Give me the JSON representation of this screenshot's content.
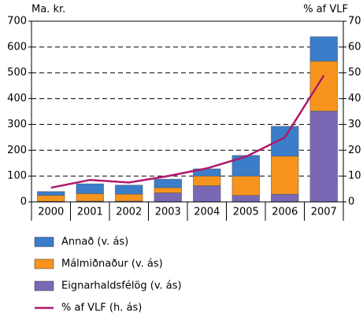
{
  "chart_data": {
    "type": "bar",
    "stacked": true,
    "y_label": "Ma. kr.",
    "y2_label": "% af VLF",
    "categories": [
      "2000",
      "2001",
      "2002",
      "2003",
      "2004",
      "2005",
      "2006",
      "2007"
    ],
    "series": [
      {
        "name": "Eignarhaldsfélög (v. ás)",
        "color": "#7b68b5",
        "values": [
          2,
          3,
          3,
          35,
          63,
          25,
          30,
          352
        ]
      },
      {
        "name": "Málmiðnaður (v. ás)",
        "color": "#f7941d",
        "values": [
          23,
          29,
          27,
          20,
          37,
          75,
          147,
          193
        ]
      },
      {
        "name": "Annað (v. ás)",
        "color": "#3a7dc9",
        "values": [
          15,
          38,
          35,
          33,
          28,
          80,
          116,
          95
        ]
      },
      {
        "name": "% af VLF (h. ás)",
        "color": "#b0186b",
        "type": "line",
        "axis": "y2",
        "values": [
          5.5,
          8.5,
          7.5,
          10,
          13,
          17.5,
          25,
          49
        ]
      }
    ],
    "ylim": [
      0,
      700
    ],
    "yticks": [
      0,
      100,
      200,
      300,
      400,
      500,
      600,
      700
    ],
    "y2lim": [
      0,
      70
    ],
    "y2ticks": [
      0,
      10,
      20,
      30,
      40,
      50,
      60,
      70
    ],
    "grid": true
  }
}
